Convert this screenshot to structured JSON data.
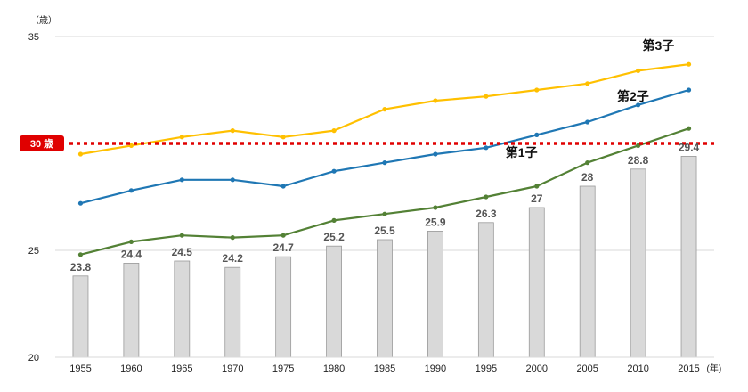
{
  "chart_data": {
    "type": "bar",
    "y_unit_label": "（歳）",
    "x_unit_label": "(年)",
    "ylim": [
      20,
      35
    ],
    "yticks": [
      20,
      25,
      35
    ],
    "grid": true,
    "categories": [
      "1955",
      "1960",
      "1965",
      "1970",
      "1975",
      "1980",
      "1985",
      "1990",
      "1995",
      "2000",
      "2005",
      "2010",
      "2015"
    ],
    "bars": {
      "values": [
        23.8,
        24.4,
        24.5,
        24.2,
        24.7,
        25.2,
        25.5,
        25.9,
        26.3,
        27,
        28,
        28.8,
        29.4
      ],
      "labels": [
        "23.8",
        "24.4",
        "24.5",
        "24.2",
        "24.7",
        "25.2",
        "25.5",
        "25.9",
        "26.3",
        "27",
        "28",
        "28.8",
        "29.4"
      ],
      "color": "#d9d9d9"
    },
    "series": [
      {
        "name": "第1子",
        "color": "#538135",
        "values": [
          24.8,
          25.4,
          25.7,
          25.6,
          25.7,
          26.4,
          26.7,
          27.0,
          27.5,
          28.0,
          29.1,
          29.9,
          30.7
        ]
      },
      {
        "name": "第2子",
        "color": "#1f77b4",
        "values": [
          27.2,
          27.8,
          28.3,
          28.3,
          28.0,
          28.7,
          29.1,
          29.5,
          29.8,
          30.4,
          31.0,
          31.8,
          32.5
        ]
      },
      {
        "name": "第3子",
        "color": "#ffc000",
        "values": [
          29.5,
          29.9,
          30.3,
          30.6,
          30.3,
          30.6,
          31.6,
          32.0,
          32.2,
          32.5,
          32.8,
          33.4,
          33.7
        ]
      }
    ],
    "reference_line": {
      "value": 30,
      "label": "30 歳",
      "color": "#e00000"
    }
  }
}
